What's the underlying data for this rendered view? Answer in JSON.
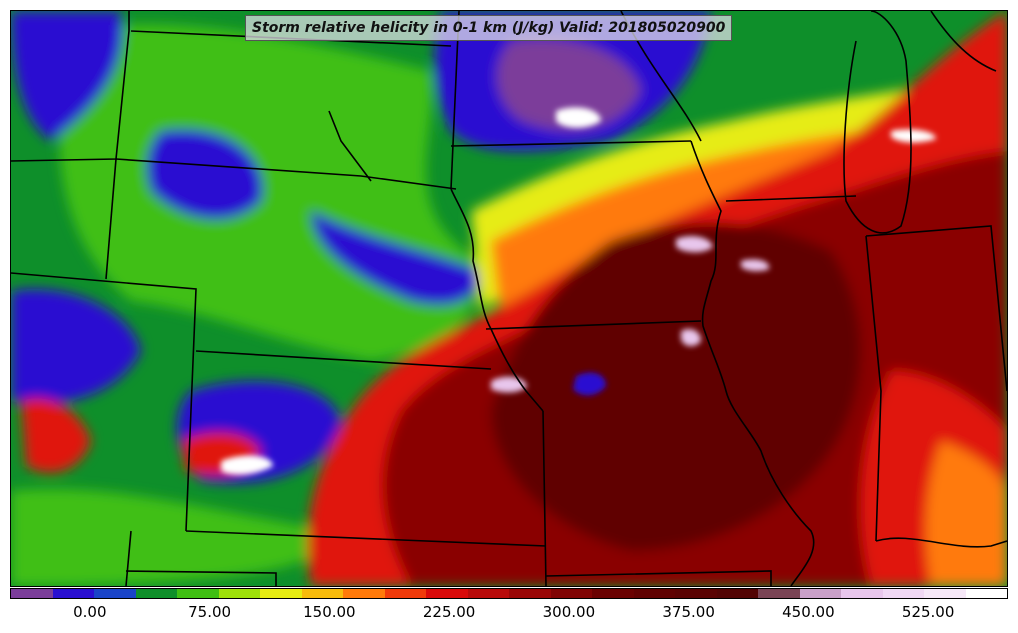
{
  "title": "Storm relative helicity in 0-1 km (J/kg) Valid: 201805020900",
  "colorbar": {
    "colors": [
      "#7b3d9a",
      "#2a0fd1",
      "#1a44c8",
      "#0e8f2a",
      "#3fbf12",
      "#9ee10a",
      "#e6ec12",
      "#f7bb0c",
      "#ff7a0a",
      "#f03a0a",
      "#d90a0a",
      "#b80a0a",
      "#9a0606",
      "#800404",
      "#6a0202",
      "#600202",
      "#5a0303",
      "#520404",
      "#7a4455",
      "#c9a0c8",
      "#e8c6ec",
      "#f0d8f4",
      "#f6e8f8",
      "#ffffff"
    ],
    "tick_labels": [
      "0.00",
      "75.00",
      "150.00",
      "225.00",
      "300.00",
      "375.00",
      "450.00",
      "525.00"
    ],
    "tick_values": [
      0,
      75,
      150,
      225,
      300,
      375,
      450,
      525
    ],
    "value_range": [
      -50,
      575
    ]
  },
  "map": {
    "regions": "central United States",
    "colors": {
      "purple": "#7b3d9a",
      "blue": "#2a0fd1",
      "green": "#0e8f2a",
      "lightgreen": "#3fbf12",
      "yellow": "#e6ec12",
      "orange": "#ff7a0a",
      "red": "#e01808",
      "darkred": "#8a0404",
      "maroon": "#600202",
      "pink": "#e8c6ec",
      "white": "#ffffff",
      "border": "#000000"
    }
  }
}
